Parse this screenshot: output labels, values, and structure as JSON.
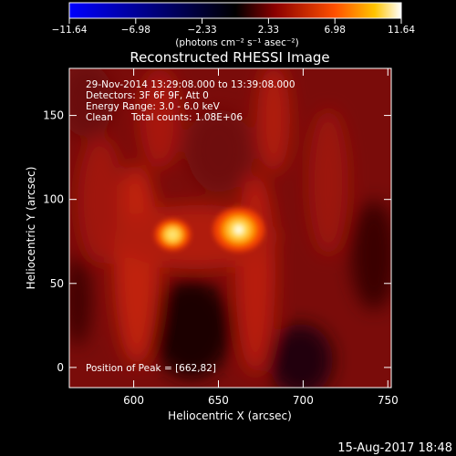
{
  "chart_data": {
    "type": "heatmap",
    "title": "Reconstructed RHESSI Image",
    "xlabel": "Heliocentric X (arcsec)",
    "ylabel": "Heliocentric Y (arcsec)",
    "xlim": [
      562,
      752
    ],
    "ylim": [
      -12,
      178
    ],
    "x_ticks": [
      600,
      650,
      700,
      750
    ],
    "y_ticks": [
      0,
      50,
      100,
      150
    ],
    "colorbar": {
      "min": -11.64,
      "max": 11.64,
      "ticks": [
        "−11.64",
        "−6.98",
        "−2.33",
        "2.33",
        "6.98",
        "11.64"
      ],
      "label": "(photons cm⁻² s⁻¹ asec⁻²)"
    },
    "sources": [
      {
        "x": 623,
        "y": 79,
        "peak": 7.2
      },
      {
        "x": 662,
        "y": 82,
        "peak": 11.64
      }
    ],
    "annotations": {
      "time_range": "29-Nov-2014 13:29:08.000 to 13:39:08.000",
      "detectors": "Detectors: 3F 6F 9F, Att 0",
      "energy": "Energy Range: 3.0 - 6.0 keV",
      "clean": "Clean",
      "counts": "Total counts: 1.08E+06",
      "peak": "Position of Peak = [662,82]"
    },
    "grid": false
  },
  "footer_date": "15-Aug-2017 18:48"
}
